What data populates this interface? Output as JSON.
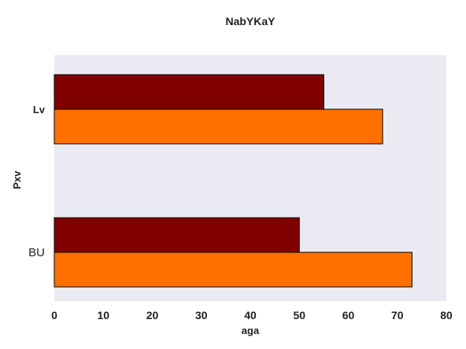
{
  "chart_data": {
    "type": "bar",
    "orientation": "horizontal",
    "title": "NabYKaY",
    "xlabel": "aga",
    "ylabel": "Pxv",
    "categories": [
      "Lv",
      "BU"
    ],
    "category_label_weights": [
      "bold",
      "normal"
    ],
    "series": [
      {
        "values": [
          55,
          50
        ],
        "color": "#800000"
      },
      {
        "values": [
          67,
          73
        ],
        "color": "#ff7000"
      }
    ],
    "xlim": [
      0,
      80
    ],
    "xticks": [
      0,
      10,
      20,
      30,
      40,
      50,
      60,
      70,
      80
    ],
    "grid": false,
    "legend": "none",
    "plot_background": "#eaeaf2"
  }
}
